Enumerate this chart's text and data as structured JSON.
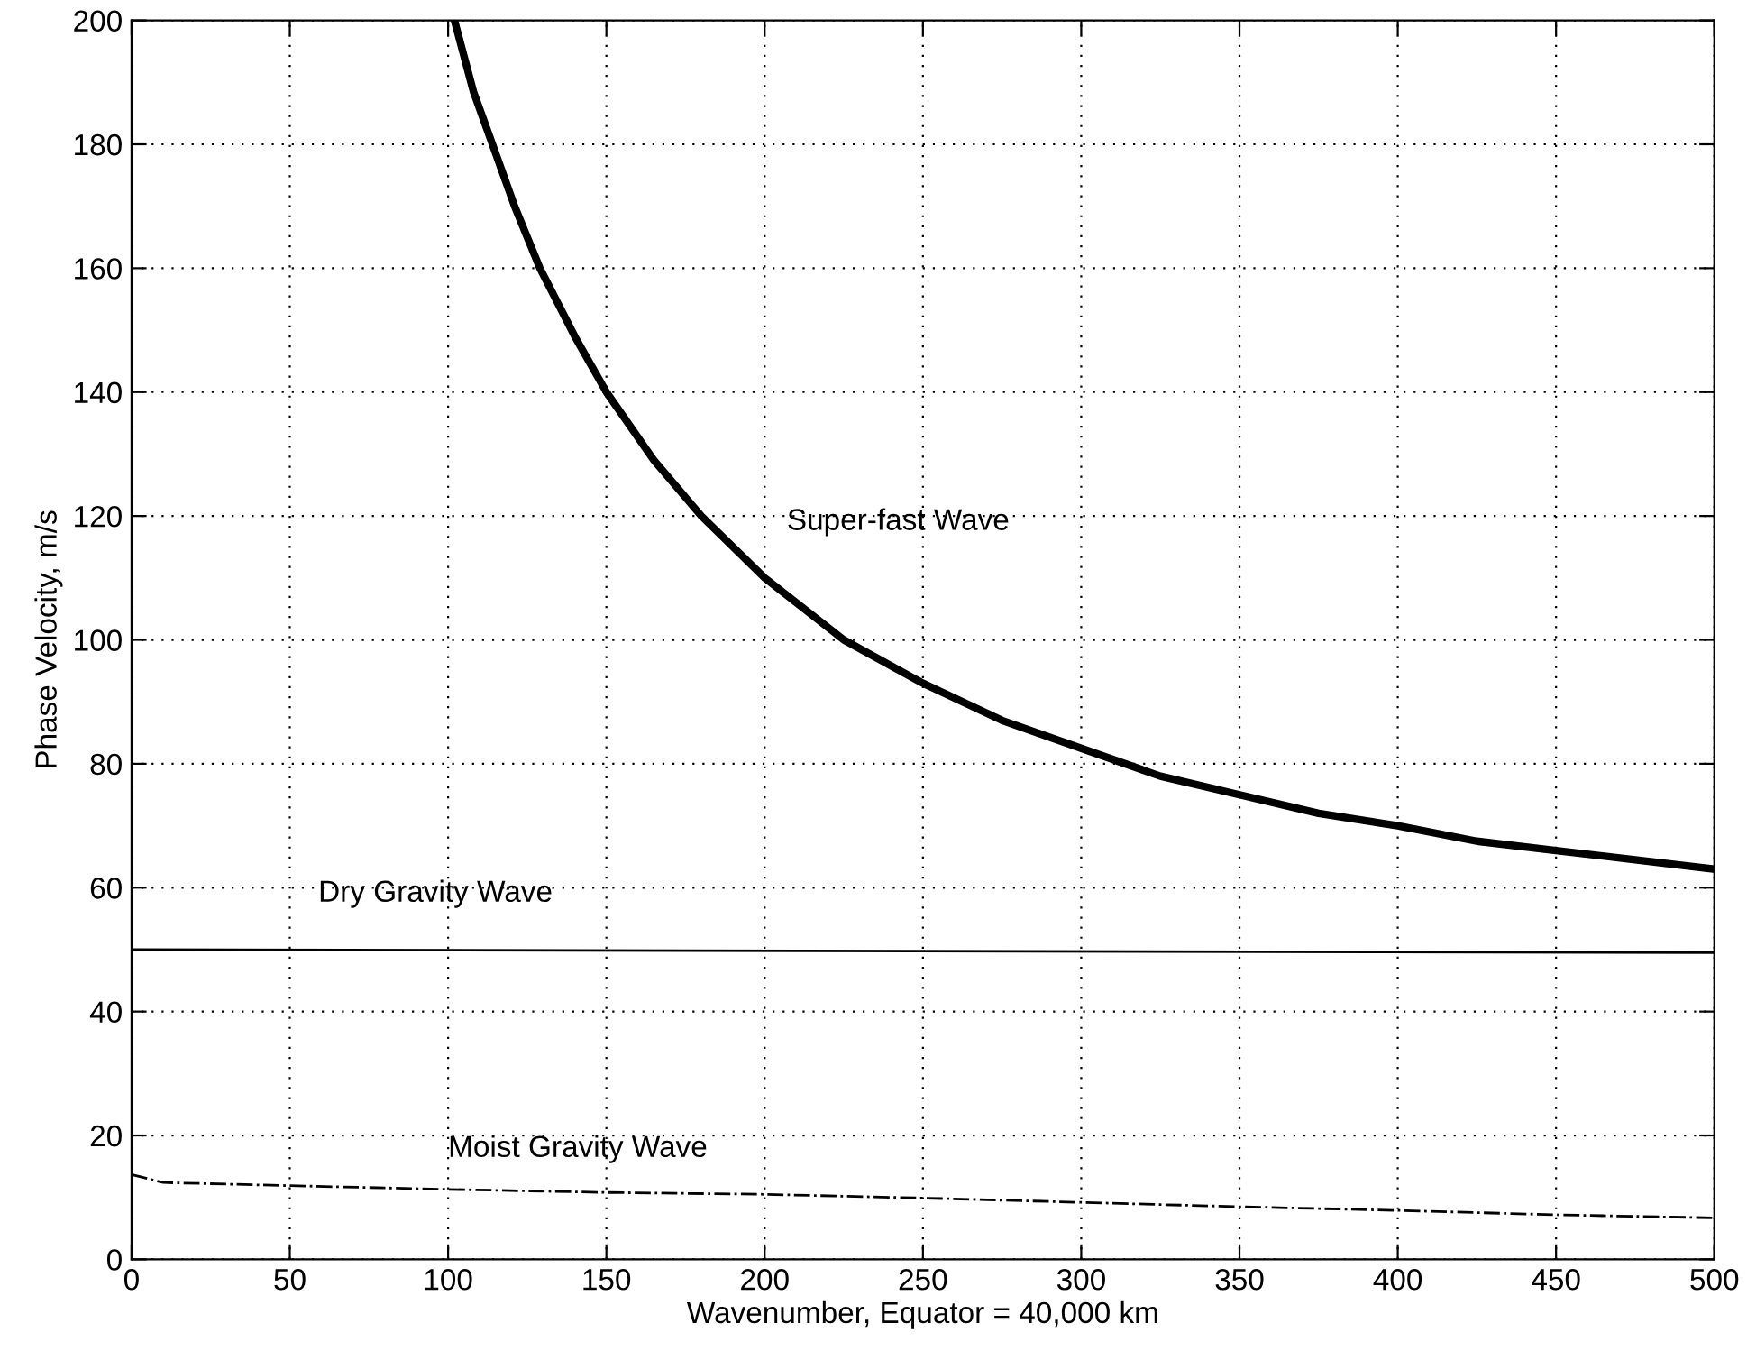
{
  "chart_data": {
    "type": "line",
    "xlabel": "Wavenumber, Equator = 40,000 km",
    "ylabel": "Phase Velocity, m/s",
    "xlim": [
      0,
      500
    ],
    "ylim": [
      0,
      200
    ],
    "xticks": [
      0,
      50,
      100,
      150,
      200,
      250,
      300,
      350,
      400,
      450,
      500
    ],
    "yticks": [
      0,
      20,
      40,
      60,
      80,
      100,
      120,
      140,
      160,
      180,
      200
    ],
    "grid": true,
    "legend": false,
    "marker": "none",
    "series": [
      {
        "color": "#000000",
        "line_style": "solid",
        "x": [
          102,
          108,
          114,
          121,
          129,
          140,
          150,
          165,
          180,
          200,
          225,
          250,
          275,
          300,
          325,
          350,
          375,
          400,
          425,
          450,
          475,
          500
        ],
        "values": [
          200,
          188.5,
          180,
          170,
          160,
          149,
          140,
          129,
          120,
          110,
          100,
          93,
          87,
          82.5,
          78,
          75,
          72,
          70,
          67.5,
          66,
          64.5,
          63
        ]
      },
      {
        "color": "#000000",
        "line_style": "solid",
        "x": [
          0,
          500
        ],
        "values": [
          50,
          49.5
        ]
      },
      {
        "color": "#000000",
        "line_style": "dashdot",
        "x": [
          0,
          10,
          50,
          100,
          150,
          200,
          250,
          300,
          350,
          400,
          450,
          500
        ],
        "values": [
          13.7,
          12.4,
          11.9,
          11.3,
          10.8,
          10.5,
          9.9,
          9.2,
          8.5,
          7.9,
          7.2,
          6.7
        ]
      }
    ],
    "annotations": [
      "Super-fast Wave",
      "Dry Gravity Wave",
      "Moist Gravity Wave"
    ]
  }
}
